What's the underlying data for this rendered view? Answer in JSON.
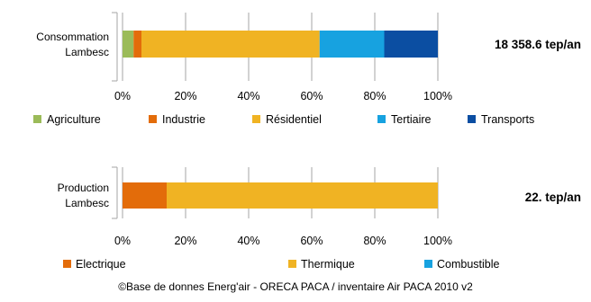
{
  "chart_data": [
    {
      "type": "bar",
      "orientation": "horizontal",
      "stacked": "percent",
      "categories": [
        "Consommation Lambesc"
      ],
      "series": [
        {
          "name": "Agriculture",
          "values": [
            3.5
          ],
          "color": "#9bbb59"
        },
        {
          "name": "Industrie",
          "values": [
            2.5
          ],
          "color": "#e36c0a"
        },
        {
          "name": "Résidentiel",
          "values": [
            56.5
          ],
          "color": "#f0b323"
        },
        {
          "name": "Tertiaire",
          "values": [
            20.5
          ],
          "color": "#17a2e0"
        },
        {
          "name": "Transports",
          "values": [
            17.0
          ],
          "color": "#0b4ea2"
        }
      ],
      "xlim": [
        0,
        100
      ],
      "x_ticks": [
        "0%",
        "20%",
        "40%",
        "60%",
        "80%",
        "100%"
      ],
      "grid": true,
      "legend_position": "bottom",
      "total_label": "18 358.6  tep/an"
    },
    {
      "type": "bar",
      "orientation": "horizontal",
      "stacked": "percent",
      "categories": [
        "Production Lambesc"
      ],
      "series": [
        {
          "name": "Electrique",
          "values": [
            14
          ],
          "color": "#e36c0a"
        },
        {
          "name": "Thermique",
          "values": [
            86
          ],
          "color": "#f0b323"
        },
        {
          "name": "Combustible",
          "values": [
            0
          ],
          "color": "#17a2e0"
        }
      ],
      "xlim": [
        0,
        100
      ],
      "x_ticks": [
        "0%",
        "20%",
        "40%",
        "60%",
        "80%",
        "100%"
      ],
      "grid": true,
      "legend_position": "bottom",
      "total_label": "22.  tep/an"
    }
  ],
  "source": "©Base de donnes Energ'air - ORECA PACA / inventaire Air PACA 2010 v2"
}
